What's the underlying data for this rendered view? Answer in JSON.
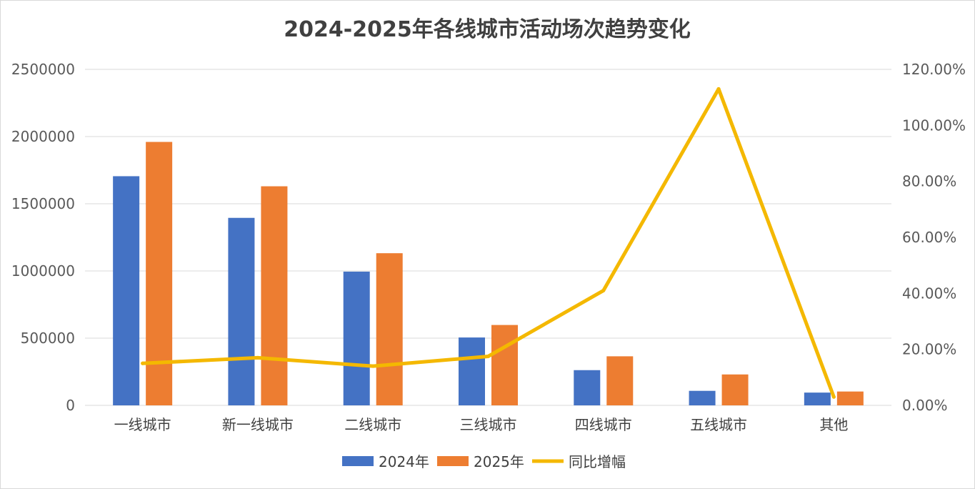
{
  "chart_data": {
    "type": "bar",
    "title": "2024-2025年各线城市活动场次趋势变化",
    "categories": [
      "一线城市",
      "新一线城市",
      "二线城市",
      "三线城市",
      "四线城市",
      "五线城市",
      "其他"
    ],
    "series": [
      {
        "name": "2024年",
        "type": "bar",
        "axis": "left",
        "color": "#4472C4",
        "values": [
          1705000,
          1395000,
          995000,
          505000,
          262000,
          108000,
          95000
        ]
      },
      {
        "name": "2025年",
        "type": "bar",
        "axis": "left",
        "color": "#ED7D31",
        "values": [
          1960000,
          1630000,
          1132000,
          598000,
          365000,
          230000,
          103000
        ]
      },
      {
        "name": "同比增幅",
        "type": "line",
        "axis": "right",
        "color": "#F4B800",
        "values": [
          0.15,
          0.17,
          0.14,
          0.175,
          0.41,
          1.13,
          0.03
        ]
      }
    ],
    "y_left": {
      "min": 0,
      "max": 2500000,
      "ticks": [
        0,
        500000,
        1000000,
        1500000,
        2000000,
        2500000
      ],
      "tick_labels": [
        "0",
        "500000",
        "1000000",
        "1500000",
        "2000000",
        "2500000"
      ]
    },
    "y_right": {
      "min": 0,
      "max": 1.2,
      "ticks": [
        0,
        0.2,
        0.4,
        0.6,
        0.8,
        1.0,
        1.2
      ],
      "tick_labels": [
        "0.00%",
        "20.00%",
        "40.00%",
        "60.00%",
        "80.00%",
        "100.00%",
        "120.00%"
      ]
    },
    "grid": true,
    "gridline_color": "#d9d9d9",
    "legend_position": "bottom"
  }
}
